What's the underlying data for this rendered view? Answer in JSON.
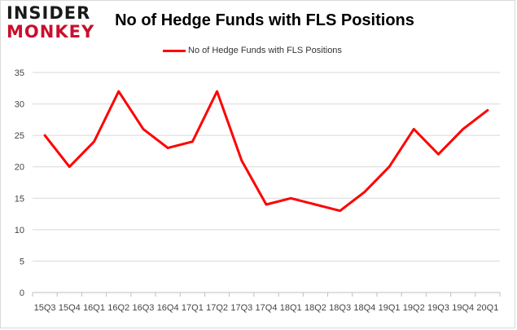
{
  "logo": {
    "line1": "INSIDER",
    "line2": "MONKEY"
  },
  "chart_data": {
    "type": "line",
    "title": "No of Hedge Funds with FLS Positions",
    "categories": [
      "15Q3",
      "15Q4",
      "16Q1",
      "16Q2",
      "16Q3",
      "16Q4",
      "17Q1",
      "17Q2",
      "17Q3",
      "17Q4",
      "18Q1",
      "18Q2",
      "18Q3",
      "18Q4",
      "19Q1",
      "19Q2",
      "19Q3",
      "19Q4",
      "20Q1"
    ],
    "series": [
      {
        "name": "No of Hedge Funds with FLS Positions",
        "values": [
          25,
          20,
          24,
          32,
          26,
          23,
          24,
          32,
          21,
          14,
          15,
          14,
          13,
          16,
          20,
          26,
          22,
          26,
          29
        ]
      }
    ],
    "ylim": [
      0,
      35
    ],
    "yticks": [
      0,
      5,
      10,
      15,
      20,
      25,
      30,
      35
    ],
    "grid": true,
    "legend": "top-center",
    "xlabel": "",
    "ylabel": "",
    "color": "#ff0000"
  }
}
